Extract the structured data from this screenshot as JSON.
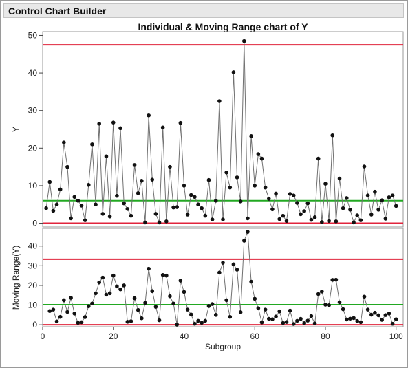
{
  "header": {
    "title": "Control Chart Builder"
  },
  "colors": {
    "limit": "#e0243c",
    "center": "#22a822",
    "series": "#707070",
    "point": "#111111",
    "frame": "#9a9a9a"
  },
  "chart_data": [
    {
      "type": "line",
      "title": "Individual & Moving Range chart of Y",
      "xlabel": "",
      "ylabel": "Y",
      "xlim": [
        0,
        102
      ],
      "ylim": [
        -1,
        51
      ],
      "yticks": [
        0,
        10,
        20,
        30,
        40,
        50
      ],
      "ucl": 47.5,
      "center": 6,
      "lcl": 0,
      "x": [
        1,
        2,
        3,
        4,
        5,
        6,
        7,
        8,
        9,
        10,
        11,
        12,
        13,
        14,
        15,
        16,
        17,
        18,
        19,
        20,
        21,
        22,
        23,
        24,
        25,
        26,
        27,
        28,
        29,
        30,
        31,
        32,
        33,
        34,
        35,
        36,
        37,
        38,
        39,
        40,
        41,
        42,
        43,
        44,
        45,
        46,
        47,
        48,
        49,
        50,
        51,
        52,
        53,
        54,
        55,
        56,
        57,
        58,
        59,
        60,
        61,
        62,
        63,
        64,
        65,
        66,
        67,
        68,
        69,
        70,
        71,
        72,
        73,
        74,
        75,
        76,
        77,
        78,
        79,
        80,
        81,
        82,
        83,
        84,
        85,
        86,
        87,
        88,
        89,
        90,
        91,
        92,
        93,
        94,
        95,
        96,
        97,
        98,
        99,
        100
      ],
      "values": [
        4,
        11,
        3.3,
        5,
        9,
        21.5,
        15,
        1.3,
        7,
        6,
        4.7,
        0.8,
        10.2,
        21,
        5,
        26.5,
        2.5,
        17.8,
        1.8,
        26.8,
        7.3,
        25.3,
        5.3,
        3.8,
        2,
        15.5,
        8,
        11.3,
        0.2,
        28.7,
        11.6,
        2.5,
        0.2,
        25.5,
        0.5,
        15,
        4.2,
        4.3,
        26.7,
        10,
        2.3,
        7.5,
        7,
        5,
        4,
        2,
        11.5,
        1,
        6,
        32.5,
        1,
        13.5,
        9.5,
        40.2,
        12.2,
        5.8,
        48.5,
        1.3,
        23.2,
        10,
        18.4,
        17.2,
        9.5,
        6.5,
        3.7,
        7.9,
        1.1,
        2,
        0.6,
        7.8,
        7.4,
        5.4,
        2.4,
        3.2,
        5.3,
        0.9,
        1.6,
        17.2,
        0.3,
        10.5,
        0.6,
        23.4,
        0.5,
        11.9,
        4,
        6.7,
        3.6,
        0.2,
        2.1,
        0.8,
        15.1,
        7.4,
        2.3,
        8.4,
        3.6,
        6.1,
        1.2,
        6.9,
        7.4,
        4.6
      ]
    },
    {
      "type": "line",
      "title": "",
      "xlabel": "Subgroup",
      "ylabel": "Moving Range(Y)",
      "xlim": [
        0,
        102
      ],
      "ylim": [
        -1,
        49
      ],
      "yticks": [
        0,
        10,
        20,
        30,
        40
      ],
      "xticks": [
        0,
        20,
        40,
        60,
        80,
        100
      ],
      "ucl": 33.3,
      "center": 10.2,
      "lcl": 0,
      "x": [
        2,
        3,
        4,
        5,
        6,
        7,
        8,
        9,
        10,
        11,
        12,
        13,
        14,
        15,
        16,
        17,
        18,
        19,
        20,
        21,
        22,
        23,
        24,
        25,
        26,
        27,
        28,
        29,
        30,
        31,
        32,
        33,
        34,
        35,
        36,
        37,
        38,
        39,
        40,
        41,
        42,
        43,
        44,
        45,
        46,
        47,
        48,
        49,
        50,
        51,
        52,
        53,
        54,
        55,
        56,
        57,
        58,
        59,
        60,
        61,
        62,
        63,
        64,
        65,
        66,
        67,
        68,
        69,
        70,
        71,
        72,
        73,
        74,
        75,
        76,
        77,
        78,
        79,
        80,
        81,
        82,
        83,
        84,
        85,
        86,
        87,
        88,
        89,
        90,
        91,
        92,
        93,
        94,
        95,
        96,
        97,
        98,
        99,
        100
      ],
      "values": [
        7,
        7.7,
        1.7,
        4,
        12.5,
        6.5,
        13.7,
        5.7,
        1,
        1.3,
        3.9,
        9.4,
        10.8,
        16,
        21.5,
        24,
        15.3,
        16,
        25,
        19.5,
        18,
        20,
        1.5,
        1.8,
        13.5,
        7.5,
        3.3,
        11.1,
        28.5,
        17.1,
        9.1,
        2.3,
        25.3,
        25,
        14.5,
        10.8,
        0.1,
        22.4,
        16.7,
        7.7,
        5.2,
        0.5,
        2,
        1,
        2,
        9.5,
        10.5,
        5,
        26.5,
        31.5,
        12.5,
        4,
        30.7,
        28,
        6.4,
        42.7,
        47.2,
        21.9,
        13.2,
        8.4,
        1.2,
        7.7,
        3,
        2.8,
        4.2,
        6.8,
        0.9,
        1.4,
        7.2,
        0.4,
        2,
        3,
        0.8,
        2.1,
        4.4,
        0.7,
        15.6,
        16.9,
        10.2,
        9.9,
        22.8,
        22.9,
        11.4,
        7.9,
        2.7,
        3.1,
        3.4,
        1.9,
        1.3,
        14.3,
        7.7,
        5.1,
        6.1,
        4.8,
        2.5,
        4.9,
        5.7,
        0.5,
        2.8
      ]
    }
  ]
}
